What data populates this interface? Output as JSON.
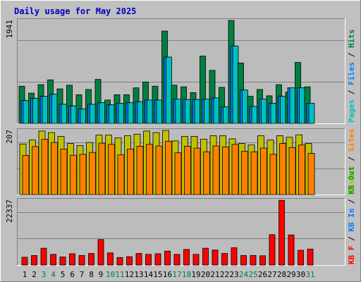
{
  "title": "Daily usage for May 2025",
  "colors": {
    "background": "#c0c0c0",
    "plot": "#bcbcbc",
    "title": "#0000c0",
    "hits": "#008040",
    "files": "#0080ff",
    "pages": "#00c0c0",
    "visits": "#c0c000",
    "sites": "#ff8000",
    "kb_in": "#0080ff",
    "kb_out": "#00a000",
    "kb_f": "#ff0000",
    "weekend_label": "#008040"
  },
  "weekend_days": [
    3,
    4,
    10,
    11,
    17,
    18,
    24,
    25,
    31
  ],
  "chart_data": [
    {
      "type": "bar",
      "panel": "hits-files-pages",
      "scale_max_label": "1941",
      "ylim": [
        0,
        1941
      ],
      "legend": [
        "Pages",
        "Files",
        "Hits"
      ],
      "categories": [
        "1",
        "2",
        "3",
        "4",
        "5",
        "6",
        "7",
        "8",
        "9",
        "10",
        "11",
        "12",
        "13",
        "14",
        "15",
        "16",
        "17",
        "18",
        "19",
        "20",
        "21",
        "22",
        "23",
        "24",
        "25",
        "26",
        "27",
        "28",
        "29",
        "30",
        "31"
      ],
      "series": [
        {
          "name": "Hits",
          "values": [
            700,
            570,
            730,
            820,
            650,
            720,
            540,
            640,
            830,
            440,
            540,
            540,
            670,
            780,
            700,
            1740,
            720,
            690,
            580,
            1270,
            1000,
            680,
            1940,
            1140,
            510,
            640,
            520,
            730,
            590,
            1150,
            690
          ]
        },
        {
          "name": "Files",
          "values": [
            430,
            470,
            510,
            550,
            360,
            330,
            270,
            360,
            390,
            350,
            380,
            390,
            410,
            440,
            440,
            1250,
            460,
            450,
            450,
            460,
            480,
            310,
            1460,
            630,
            320,
            460,
            380,
            510,
            670,
            670,
            380
          ]
        },
        {
          "name": "Pages",
          "values": [
            430,
            470,
            510,
            550,
            360,
            330,
            270,
            360,
            390,
            350,
            380,
            390,
            410,
            440,
            440,
            1250,
            460,
            450,
            450,
            460,
            480,
            310,
            1460,
            630,
            320,
            460,
            380,
            510,
            670,
            670,
            380
          ]
        }
      ]
    },
    {
      "type": "bar",
      "panel": "visits-sites",
      "scale_max_label": "207",
      "ylim": [
        0,
        207
      ],
      "legend": [
        "Visits",
        "Sites"
      ],
      "categories": [
        "1",
        "2",
        "3",
        "4",
        "5",
        "6",
        "7",
        "8",
        "9",
        "10",
        "11",
        "12",
        "13",
        "14",
        "15",
        "16",
        "17",
        "18",
        "19",
        "20",
        "21",
        "22",
        "23",
        "24",
        "25",
        "26",
        "27",
        "28",
        "29",
        "30",
        "31"
      ],
      "series": [
        {
          "name": "Visits",
          "values": [
            163,
            176,
            205,
            200,
            188,
            165,
            158,
            168,
            192,
            192,
            183,
            190,
            195,
            205,
            200,
            207,
            173,
            188,
            188,
            179,
            190,
            190,
            180,
            165,
            160,
            190,
            176,
            190,
            185,
            193,
            165
          ]
        },
        {
          "name": "Sites",
          "values": [
            126,
            155,
            178,
            168,
            147,
            127,
            130,
            136,
            166,
            162,
            128,
            147,
            156,
            162,
            157,
            172,
            135,
            156,
            150,
            138,
            157,
            154,
            162,
            140,
            138,
            150,
            130,
            165,
            152,
            160,
            133
          ]
        }
      ]
    },
    {
      "type": "bar",
      "panel": "kb",
      "scale_max_label": "22337",
      "ylim": [
        0,
        22337
      ],
      "legend": [
        "KB F",
        "KB In",
        "KB Out"
      ],
      "categories": [
        "1",
        "2",
        "3",
        "4",
        "5",
        "6",
        "7",
        "8",
        "9",
        "10",
        "11",
        "12",
        "13",
        "14",
        "15",
        "16",
        "17",
        "18",
        "19",
        "20",
        "21",
        "22",
        "23",
        "24",
        "25",
        "26",
        "27",
        "28",
        "29",
        "30",
        "31"
      ],
      "series": [
        {
          "name": "KB F",
          "values": [
            2700,
            3300,
            5800,
            3700,
            2800,
            3900,
            3300,
            4000,
            8800,
            4200,
            2600,
            2900,
            4000,
            3700,
            3900,
            4800,
            3700,
            5400,
            3700,
            5800,
            5200,
            4000,
            6000,
            3300,
            3300,
            3200,
            10500,
            22300,
            10400,
            5100,
            5500
          ]
        }
      ]
    }
  ]
}
